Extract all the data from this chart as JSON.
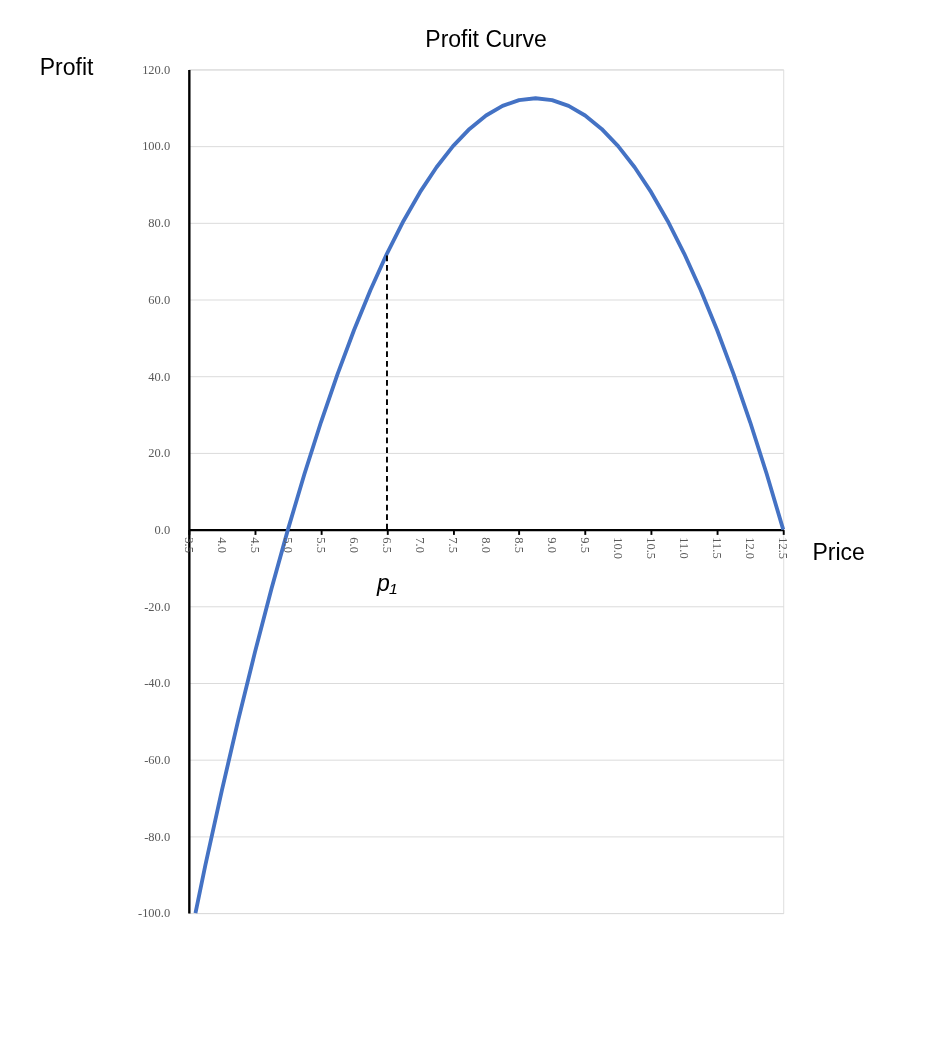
{
  "chart_data": {
    "type": "line",
    "title": "Profit Curve",
    "xlabel": "Price",
    "ylabel": "Profit",
    "x": [
      3.6,
      3.75,
      4.0,
      4.25,
      4.5,
      4.75,
      5.0,
      5.25,
      5.5,
      5.75,
      6.0,
      6.25,
      6.5,
      6.75,
      7.0,
      7.25,
      7.5,
      7.75,
      8.0,
      8.25,
      8.5,
      8.75,
      9.0,
      9.25,
      9.5,
      9.75,
      10.0,
      10.25,
      10.5,
      10.75,
      11.0,
      11.25,
      11.5,
      11.75,
      12.0,
      12.25,
      12.5
    ],
    "series": [
      {
        "color": "#4472c4",
        "values": [
          -100,
          -87.5,
          -68,
          -49.5,
          -32,
          -15.5,
          0,
          14.5,
          28,
          40.5,
          52,
          62.5,
          72,
          80.5,
          88,
          94.5,
          100,
          104.5,
          108,
          110.5,
          112,
          112.5,
          112,
          110.5,
          108,
          104.5,
          100,
          94.5,
          88,
          80.5,
          72,
          62.5,
          52,
          40.5,
          28,
          14.5,
          0
        ]
      },
      {
        "type": "line",
        "color": "#000000",
        "line_style": "dashed",
        "x": [
          6.5,
          6.5
        ],
        "values": [
          0,
          72
        ]
      }
    ],
    "annotations": [
      "p₁"
    ],
    "xlim": [
      3.5,
      12.5
    ],
    "xticks": [
      {
        "value": 3.5,
        "label": "3.5"
      },
      {
        "value": 4,
        "label": "4.0"
      },
      {
        "value": 4.5,
        "label": "4.5"
      },
      {
        "value": 5,
        "label": "5.0"
      },
      {
        "value": 5.5,
        "label": "5.5"
      },
      {
        "value": 6,
        "label": "6.0"
      },
      {
        "value": 6.5,
        "label": "6.5"
      },
      {
        "value": 7,
        "label": "7.0"
      },
      {
        "value": 7.5,
        "label": "7.5"
      },
      {
        "value": 8,
        "label": "8.0"
      },
      {
        "value": 8.5,
        "label": "8.5"
      },
      {
        "value": 9,
        "label": "9.0"
      },
      {
        "value": 9.5,
        "label": "9.5"
      },
      {
        "value": 10,
        "label": "10.0"
      },
      {
        "value": 10.5,
        "label": "10.5"
      },
      {
        "value": 11,
        "label": "11.0"
      },
      {
        "value": 11.5,
        "label": "11.5"
      },
      {
        "value": 12,
        "label": "12.0"
      },
      {
        "value": 12.5,
        "label": "12.5"
      }
    ],
    "ylim": [
      -100,
      120
    ],
    "yticks": [
      {
        "value": -100,
        "label": "-100.0"
      },
      {
        "value": -80,
        "label": "-80.0"
      },
      {
        "value": -60,
        "label": "-60.0"
      },
      {
        "value": -40,
        "label": "-40.0"
      },
      {
        "value": -20,
        "label": "-20.0"
      },
      {
        "value": 0,
        "label": "0.0"
      },
      {
        "value": 20,
        "label": "20.0"
      },
      {
        "value": 40,
        "label": "40.0"
      },
      {
        "value": 60,
        "label": "60.0"
      },
      {
        "value": 80,
        "label": "80.0"
      },
      {
        "value": 100,
        "label": "100.0"
      },
      {
        "value": 120,
        "label": "120.0"
      }
    ],
    "grid": "y",
    "marker": "none",
    "line_style": "solid"
  }
}
